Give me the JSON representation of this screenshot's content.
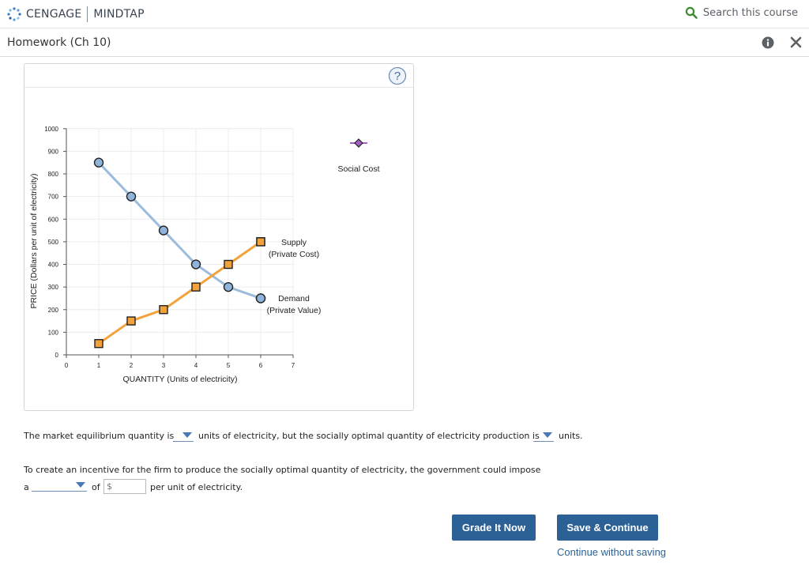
{
  "header": {
    "brand_left": "CENGAGE",
    "brand_right": "MINDTAP",
    "search_label": "Search this course",
    "accent_green": "#3d8b2f"
  },
  "titlebar": {
    "title": "Homework (Ch 10)"
  },
  "help": {
    "icon": "question-mark-icon"
  },
  "chart_data": {
    "type": "line",
    "xlabel": "QUANTITY (Units of electricity)",
    "ylabel": "PRICE (Dollars per unit of electricity)",
    "xlim": [
      0,
      7
    ],
    "ylim": [
      0,
      1000
    ],
    "xticks": [
      "0",
      "1",
      "2",
      "3",
      "4",
      "5",
      "6",
      "7"
    ],
    "yticks": [
      "0",
      "100",
      "200",
      "300",
      "400",
      "500",
      "600",
      "700",
      "800",
      "900",
      "1000"
    ],
    "series": [
      {
        "name": "Demand (Private Value)",
        "label_line1": "Demand",
        "label_line2": "(Private Value)",
        "color": "#8fb3d9",
        "line_color": "#9bbcdc",
        "marker": "circle",
        "x": [
          1,
          2,
          3,
          4,
          5,
          6
        ],
        "y": [
          850,
          700,
          550,
          400,
          300,
          250
        ]
      },
      {
        "name": "Supply (Private Cost)",
        "label_line1": "Supply",
        "label_line2": "(Private Cost)",
        "color": "#f3a23b",
        "line_color": "#f3a23b",
        "marker": "square",
        "x": [
          1,
          2,
          3,
          4,
          5,
          6
        ],
        "y": [
          50,
          150,
          200,
          300,
          400,
          500
        ]
      }
    ],
    "legend": {
      "social_cost_label": "Social Cost",
      "social_cost_color": "#a55fc4",
      "social_cost_marker": "diamond"
    }
  },
  "question": {
    "line1_before": "The market equilibrium quantity is",
    "line1_middle": "units of electricity, but the socially optimal quantity of electricity production is",
    "line1_after": "units.",
    "line2": "To create an incentive for the firm to produce the socially optimal quantity of electricity, the government could impose",
    "line3_a": "a",
    "line3_of": "of",
    "line3_after": "per unit of electricity.",
    "amount_placeholder": "$"
  },
  "buttons": {
    "grade": "Grade It Now",
    "save": "Save & Continue",
    "continue_link": "Continue without saving"
  }
}
